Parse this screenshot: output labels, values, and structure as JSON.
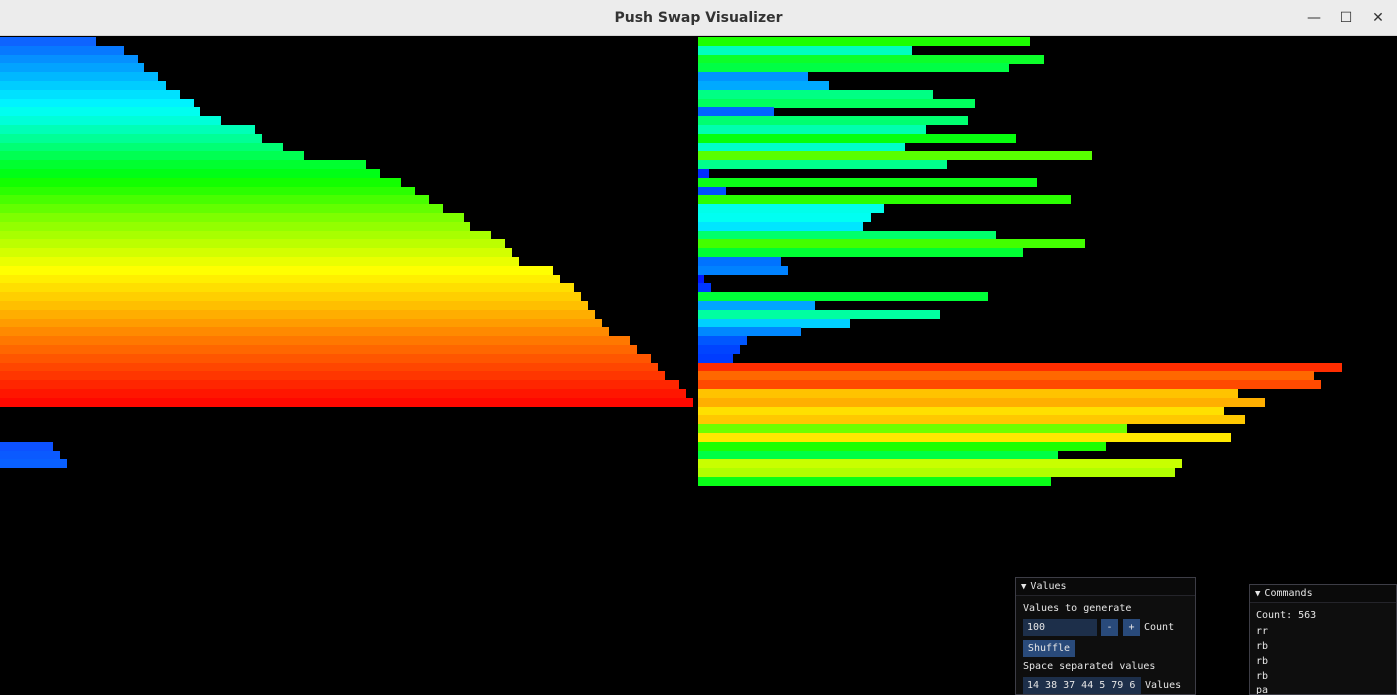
{
  "window": {
    "title": "Push Swap Visualizer",
    "minimize_glyph": "—",
    "maximize_glyph": "☐",
    "close_glyph": "✕"
  },
  "stack_a": {
    "bar_values": [
      96,
      124,
      138,
      144,
      158,
      166,
      180,
      194,
      200,
      221,
      255,
      262,
      283,
      304,
      366,
      380,
      401,
      415,
      429,
      443,
      464,
      470,
      491,
      505,
      512,
      519,
      553,
      560,
      574,
      581,
      588,
      595,
      602,
      609,
      630,
      637,
      651,
      658,
      665,
      679,
      686,
      693
    ],
    "bar_colors": [
      "#0e64ff",
      "#0779ff",
      "#0590ff",
      "#02a3ff",
      "#00b8ff",
      "#00cdff",
      "#00e1ff",
      "#00f3ff",
      "#00fff0",
      "#00ffd9",
      "#00ffb7",
      "#00ff96",
      "#00ff74",
      "#00ff52",
      "#00ff30",
      "#00ff16",
      "#13ff00",
      "#2bff00",
      "#48ff00",
      "#63ff00",
      "#7eff00",
      "#93ff00",
      "#a8ff00",
      "#bcff00",
      "#d3ff00",
      "#eaff00",
      "#ffff00",
      "#ffef00",
      "#ffdf00",
      "#ffcf00",
      "#ffbf00",
      "#ffae00",
      "#ff9c00",
      "#ff8a00",
      "#ff7800",
      "#ff6700",
      "#ff5600",
      "#ff4600",
      "#ff3600",
      "#ff2600",
      "#ff1600",
      "#ff0800"
    ],
    "extra_bar_values": [
      53,
      60,
      67
    ],
    "extra_bar_colors": [
      "#0d52ff",
      "#0b5aff",
      "#0960ff"
    ]
  },
  "stack_b": {
    "bar_values": [
      332,
      214,
      346,
      311,
      110,
      131,
      235,
      277,
      76,
      270,
      228,
      318,
      207,
      394,
      249,
      11,
      339,
      28,
      373,
      186,
      173,
      165,
      298,
      387,
      325,
      83,
      90,
      6,
      13,
      290,
      117,
      242,
      152,
      103,
      49,
      42,
      35,
      644,
      616,
      623,
      540,
      567,
      526,
      547,
      429,
      533,
      408,
      360,
      484,
      477,
      353
    ],
    "bar_colors": [
      "#1cff00",
      "#00ffbd",
      "#0cff2a",
      "#00ff45",
      "#0094ff",
      "#00a9ff",
      "#00ff84",
      "#00ff5d",
      "#0066ff",
      "#00ff70",
      "#00ffae",
      "#06ff0d",
      "#00ffca",
      "#58ff00",
      "#00ff8c",
      "#002dff",
      "#0cff17",
      "#004fff",
      "#2aff00",
      "#00ffea",
      "#00fff2",
      "#00e6ff",
      "#00ff6b",
      "#43ff00",
      "#00ff34",
      "#0073ff",
      "#0082ff",
      "#0019ff",
      "#0037ff",
      "#00ff39",
      "#00a5ff",
      "#00ffa1",
      "#00d0ff",
      "#0088ff",
      "#0057ff",
      "#0044ff",
      "#003cff",
      "#ff2d00",
      "#ff6800",
      "#ff4a00",
      "#ffc300",
      "#ffaf00",
      "#ffe000",
      "#ffc800",
      "#6eff00",
      "#ffe800",
      "#1dff00",
      "#00ff44",
      "#c8ff00",
      "#b1ff00",
      "#09ff18"
    ]
  },
  "values_panel": {
    "title": "Values",
    "generate_label": "Values to generate",
    "generate_value": "100",
    "minus_label": "-",
    "plus_label": "+",
    "count_label": "Count",
    "shuffle_label": "Shuffle",
    "space_label": "Space separated values",
    "space_value": "14 38 37 44 5 79 6",
    "values_label": "Values"
  },
  "commands_panel": {
    "title": "Commands",
    "count_text": "Count: 563",
    "commands": [
      "rr",
      "rb",
      "rb",
      "rb",
      "pa"
    ]
  }
}
